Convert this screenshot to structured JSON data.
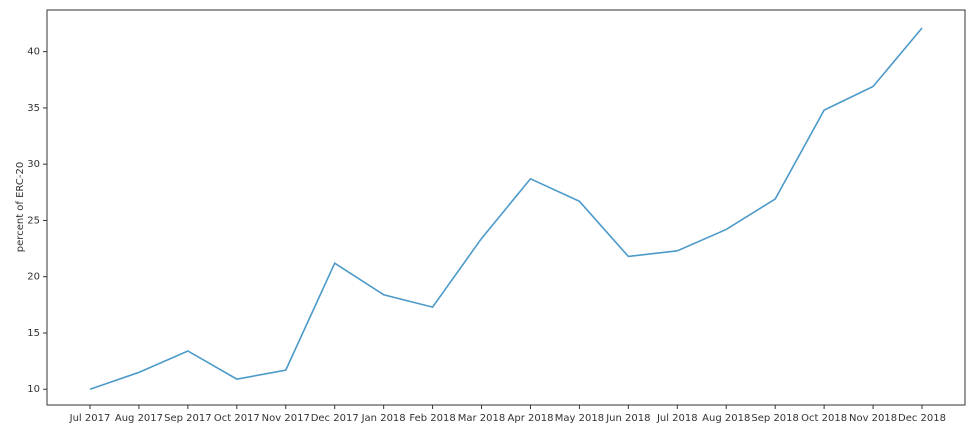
{
  "chart_data": {
    "type": "line",
    "y_label": "percent of ERC-20",
    "categories": [
      "Jul 2017",
      "Aug 2017",
      "Sep 2017",
      "Oct 2017",
      "Nov 2017",
      "Dec 2017",
      "Jan 2018",
      "Feb 2018",
      "Mar 2018",
      "Apr 2018",
      "May 2018",
      "Jun 2018",
      "Jul 2018",
      "Aug 2018",
      "Sep 2018",
      "Oct 2018",
      "Nov 2018",
      "Dec 2018"
    ],
    "series": [
      {
        "name": "percent of ERC-20",
        "color": "#4c9ac9",
        "values": [
          10.0,
          11.5,
          13.4,
          10.9,
          11.7,
          21.2,
          18.4,
          17.3,
          23.4,
          28.7,
          26.7,
          21.8,
          22.3,
          24.2,
          26.9,
          34.8,
          36.9,
          42.1
        ]
      }
    ],
    "ylim": [
      8.6,
      43.7
    ],
    "yticks": [
      10,
      15,
      20,
      25,
      30,
      35,
      40
    ],
    "grid": false
  }
}
